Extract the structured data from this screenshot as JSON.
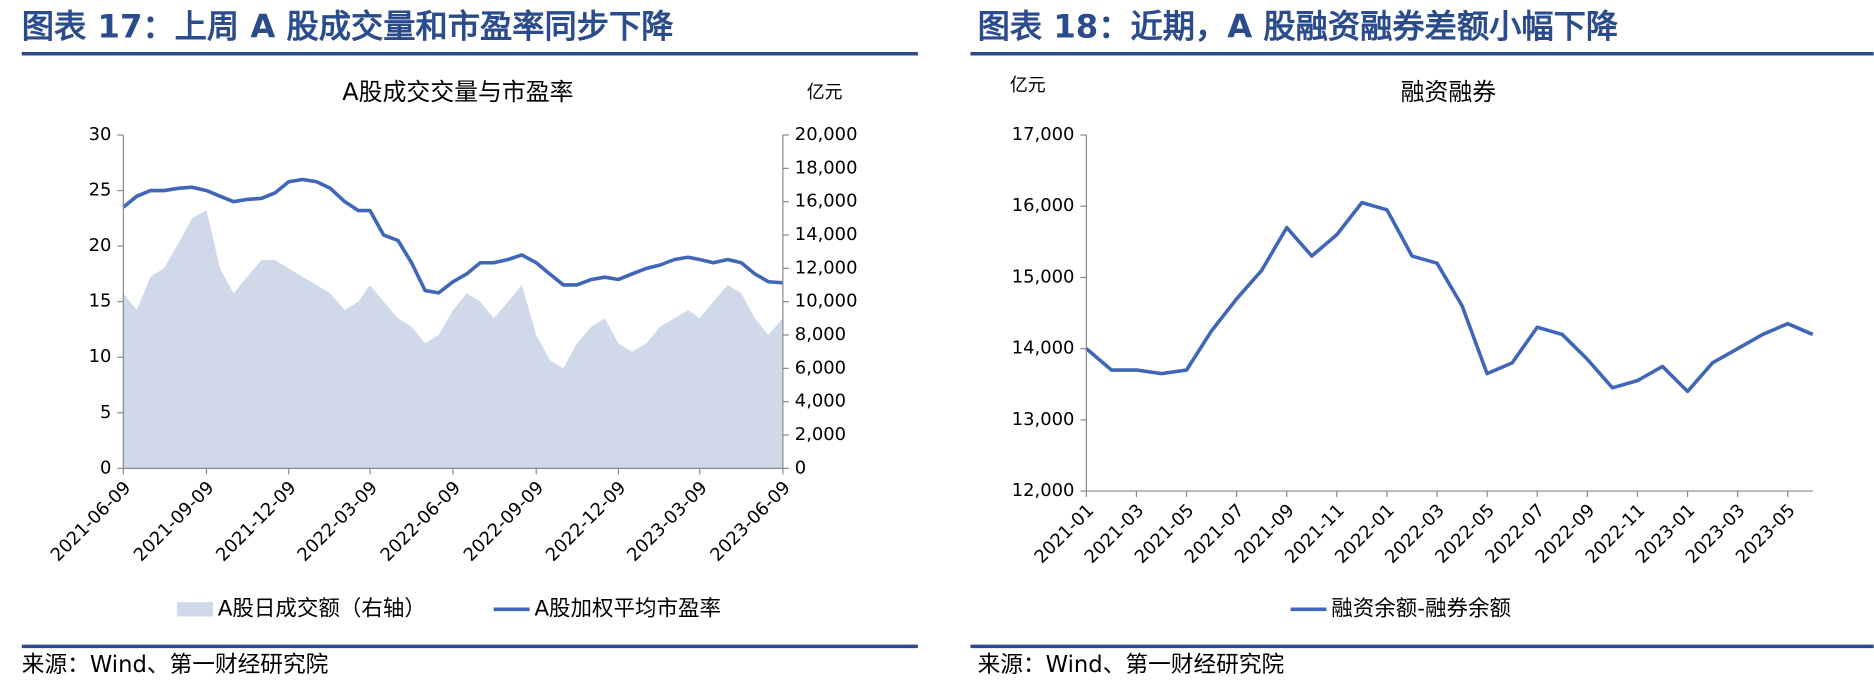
{
  "chart_data": [
    {
      "type": "combo",
      "figure_title": "图表 17：上周 A 股成交量和市盈率同步下降",
      "title": "A股成交交量与市盈率",
      "y2_unit": "亿元",
      "source": "来源：Wind、第一财经研究院",
      "x": [
        "2021-06-09",
        "2021-06-24",
        "2021-07-09",
        "2021-07-24",
        "2021-08-09",
        "2021-08-24",
        "2021-09-09",
        "2021-09-24",
        "2021-10-09",
        "2021-10-24",
        "2021-11-09",
        "2021-11-24",
        "2021-12-09",
        "2021-12-24",
        "2022-01-09",
        "2022-01-24",
        "2022-02-09",
        "2022-02-24",
        "2022-03-09",
        "2022-03-24",
        "2022-04-09",
        "2022-04-24",
        "2022-05-09",
        "2022-05-24",
        "2022-06-09",
        "2022-06-24",
        "2022-07-09",
        "2022-07-24",
        "2022-08-09",
        "2022-08-24",
        "2022-09-09",
        "2022-09-24",
        "2022-10-09",
        "2022-10-24",
        "2022-11-09",
        "2022-11-24",
        "2022-12-09",
        "2022-12-24",
        "2023-01-09",
        "2023-01-24",
        "2023-02-09",
        "2023-02-24",
        "2023-03-09",
        "2023-03-24",
        "2023-04-09",
        "2023-04-24",
        "2023-05-09",
        "2023-05-24",
        "2023-06-09"
      ],
      "series": [
        {
          "name": "A股日成交额（右轴）",
          "type": "area",
          "axis": "y2",
          "color": "#cfd9ea",
          "values": [
            10500,
            9500,
            11500,
            12000,
            13500,
            15000,
            15500,
            12000,
            10500,
            11500,
            12500,
            12500,
            12000,
            11500,
            11000,
            10500,
            9500,
            10000,
            11000,
            10000,
            9000,
            8500,
            7500,
            8000,
            9500,
            10500,
            10000,
            9000,
            10000,
            11000,
            8000,
            6500,
            6000,
            7500,
            8500,
            9000,
            7500,
            7000,
            7500,
            8500,
            9000,
            9500,
            9000,
            10000,
            11000,
            10500,
            9000,
            8000,
            9000
          ]
        },
        {
          "name": "A股加权平均市盈率",
          "type": "line",
          "color": "#3f66b8",
          "values": [
            23.5,
            24.5,
            25.0,
            25.0,
            25.2,
            25.3,
            25.0,
            24.5,
            24.0,
            24.2,
            24.3,
            24.8,
            25.8,
            26.0,
            25.8,
            25.2,
            24.0,
            23.2,
            23.2,
            21.0,
            20.5,
            18.5,
            16.0,
            15.8,
            16.8,
            17.5,
            18.5,
            18.5,
            18.8,
            19.2,
            18.5,
            17.5,
            16.5,
            16.5,
            17.0,
            17.2,
            17.0,
            17.5,
            18.0,
            18.3,
            18.8,
            19.0,
            18.8,
            18.5,
            18.8,
            18.5,
            17.5,
            16.8,
            16.7
          ]
        }
      ],
      "xlim": [
        "2021-06-09",
        "2023-06-09"
      ],
      "xticks": [
        "2021-06-09",
        "2021-09-09",
        "2021-12-09",
        "2022-03-09",
        "2022-06-09",
        "2022-09-09",
        "2022-12-09",
        "2023-03-09",
        "2023-06-09"
      ],
      "ylim": [
        0,
        30
      ],
      "yticks": [
        0,
        5,
        10,
        15,
        20,
        25,
        30
      ],
      "y2lim": [
        0,
        20000
      ],
      "y2ticks": [
        0,
        {
          "value": 2000,
          "label": "2,000"
        },
        {
          "value": 4000,
          "label": "4,000"
        },
        {
          "value": 6000,
          "label": "6,000"
        },
        {
          "value": 8000,
          "label": "8,000"
        },
        {
          "value": 10000,
          "label": "10,000"
        },
        {
          "value": 12000,
          "label": "12,000"
        },
        {
          "value": 14000,
          "label": "14,000"
        },
        {
          "value": 16000,
          "label": "16,000"
        },
        {
          "value": 18000,
          "label": "18,000"
        },
        {
          "value": 20000,
          "label": "20,000"
        }
      ]
    },
    {
      "type": "line",
      "figure_title": "图表 18：近期，A 股融资融券差额小幅下降",
      "title": "融资融券",
      "y_unit": "亿元",
      "source": "来源：Wind、第一财经研究院",
      "x": [
        "2021-01",
        "2021-02",
        "2021-03",
        "2021-04",
        "2021-05",
        "2021-06",
        "2021-07",
        "2021-08",
        "2021-09",
        "2021-10",
        "2021-11",
        "2021-12",
        "2022-01",
        "2022-02",
        "2022-03",
        "2022-04",
        "2022-05",
        "2022-06",
        "2022-07",
        "2022-08",
        "2022-09",
        "2022-10",
        "2022-11",
        "2022-12",
        "2023-01",
        "2023-02",
        "2023-03",
        "2023-04",
        "2023-05",
        "2023-06"
      ],
      "series": [
        {
          "name": "融资余额-融券余额",
          "color": "#3f66b8",
          "values": [
            14000,
            13700,
            13700,
            13650,
            13700,
            14250,
            14700,
            15100,
            15700,
            15300,
            15600,
            16050,
            15950,
            15300,
            15200,
            14600,
            13650,
            13800,
            14300,
            14200,
            13850,
            13450,
            13550,
            13750,
            13400,
            13800,
            14000,
            14200,
            14350,
            14200
          ]
        }
      ],
      "xlim": [
        "2021-01",
        "2023-06"
      ],
      "xticks": [
        "2021-01",
        "2021-03",
        "2021-05",
        "2021-07",
        "2021-09",
        "2021-11",
        "2022-01",
        "2022-03",
        "2022-05",
        "2022-07",
        "2022-09",
        "2022-11",
        "2023-01",
        "2023-03",
        "2023-05"
      ],
      "ylim": [
        12000,
        17000
      ],
      "yticks": [
        {
          "value": 12000,
          "label": "12,000"
        },
        {
          "value": 13000,
          "label": "13,000"
        },
        {
          "value": 14000,
          "label": "14,000"
        },
        {
          "value": 15000,
          "label": "15,000"
        },
        {
          "value": 16000,
          "label": "16,000"
        },
        {
          "value": 17000,
          "label": "17,000"
        }
      ]
    }
  ]
}
